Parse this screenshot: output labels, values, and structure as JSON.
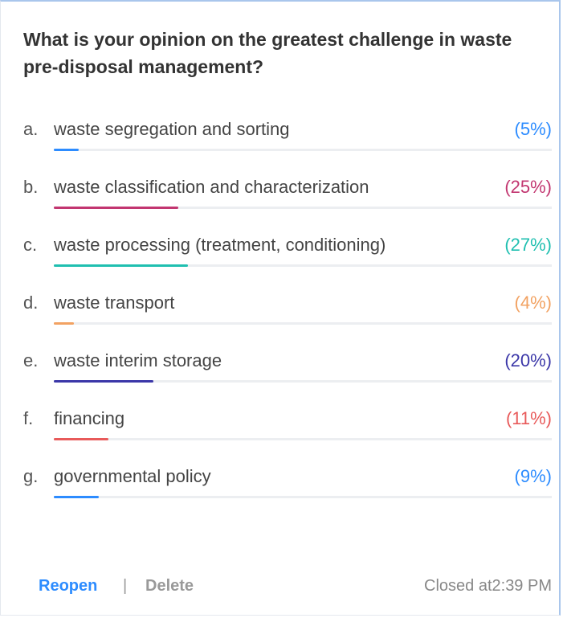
{
  "question": "What is your opinion on the greatest challenge in waste pre-disposal management?",
  "xlim": [
    0,
    100
  ],
  "options": [
    {
      "letter": "a.",
      "text": "waste segregation and sorting",
      "value": 5,
      "value_label": "(5%)",
      "color": "#2d8cff"
    },
    {
      "letter": "b.",
      "text": "waste classification and characterization",
      "value": 25,
      "value_label": "(25%)",
      "color": "#c23670"
    },
    {
      "letter": "c.",
      "text": "waste processing (treatment, conditioning)",
      "value": 27,
      "value_label": "(27%)",
      "color": "#1fbfb0"
    },
    {
      "letter": "d.",
      "text": "waste transport",
      "value": 4,
      "value_label": "(4%)",
      "color": "#f2a262"
    },
    {
      "letter": "e.",
      "text": "waste interim storage",
      "value": 20,
      "value_label": "(20%)",
      "color": "#3b37a8"
    },
    {
      "letter": "f.",
      "text": "financing",
      "value": 11,
      "value_label": "(11%)",
      "color": "#e85a5a"
    },
    {
      "letter": "g.",
      "text": "governmental policy",
      "value": 9,
      "value_label": "(9%)",
      "color": "#2d8cff"
    }
  ],
  "footer": {
    "reopen": "Reopen",
    "separator": "|",
    "delete": "Delete",
    "status": "Closed at2:39 PM"
  }
}
